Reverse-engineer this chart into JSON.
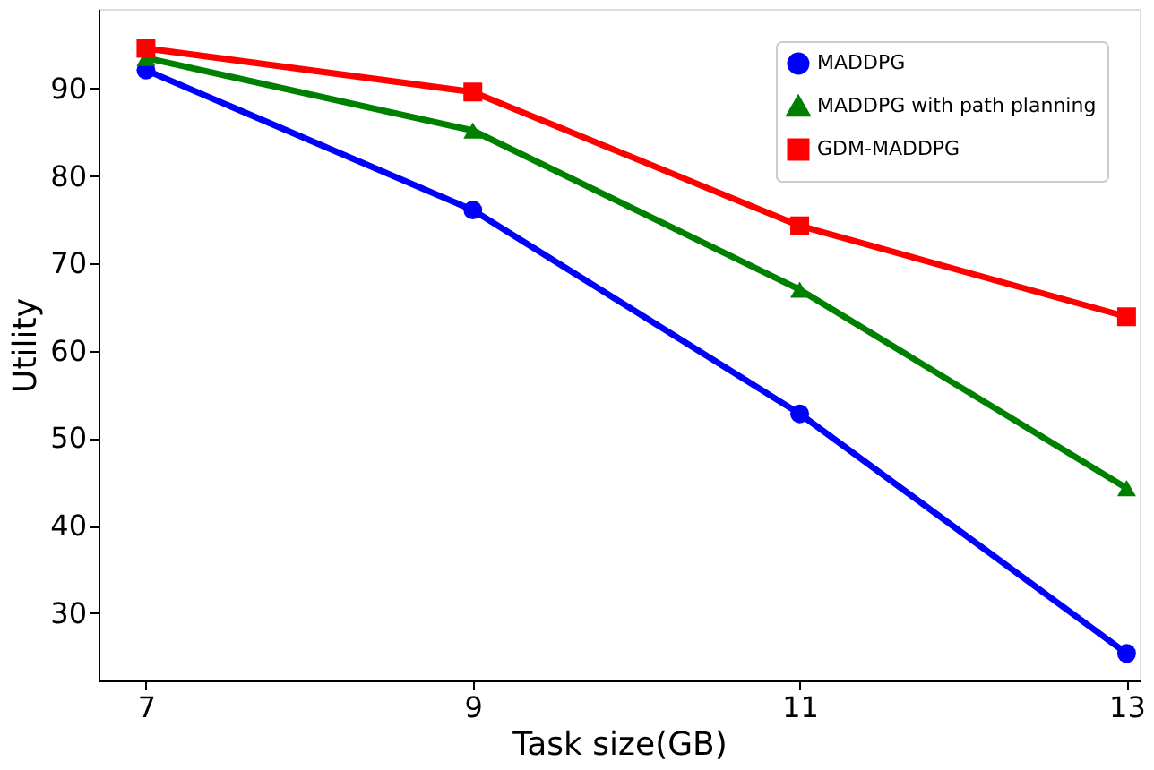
{
  "chart_data": {
    "type": "line",
    "xlabel": "Task size(GB)",
    "ylabel": "Utility",
    "x": [
      7,
      9,
      11,
      13
    ],
    "xlim": [
      6.71,
      13.08
    ],
    "xticks": [
      7,
      9,
      11,
      13
    ],
    "ylim": [
      22.3,
      99.1
    ],
    "yticks": [
      30,
      40,
      50,
      60,
      70,
      80,
      90
    ],
    "legend": "top right",
    "grid": false,
    "line_style": "solid",
    "series": [
      {
        "name": "MADDPG",
        "color": "#0000ff",
        "marker": "circle",
        "values": [
          92.1,
          76.1,
          52.8,
          25.4
        ]
      },
      {
        "name": "MADDPG with path planning",
        "color": "#008000",
        "marker": "triangle",
        "values": [
          93.5,
          85.2,
          67.0,
          44.3
        ]
      },
      {
        "name": "GDM-MADDPG",
        "color": "#ff0000",
        "marker": "square",
        "values": [
          94.6,
          89.6,
          74.3,
          63.9
        ]
      }
    ]
  }
}
